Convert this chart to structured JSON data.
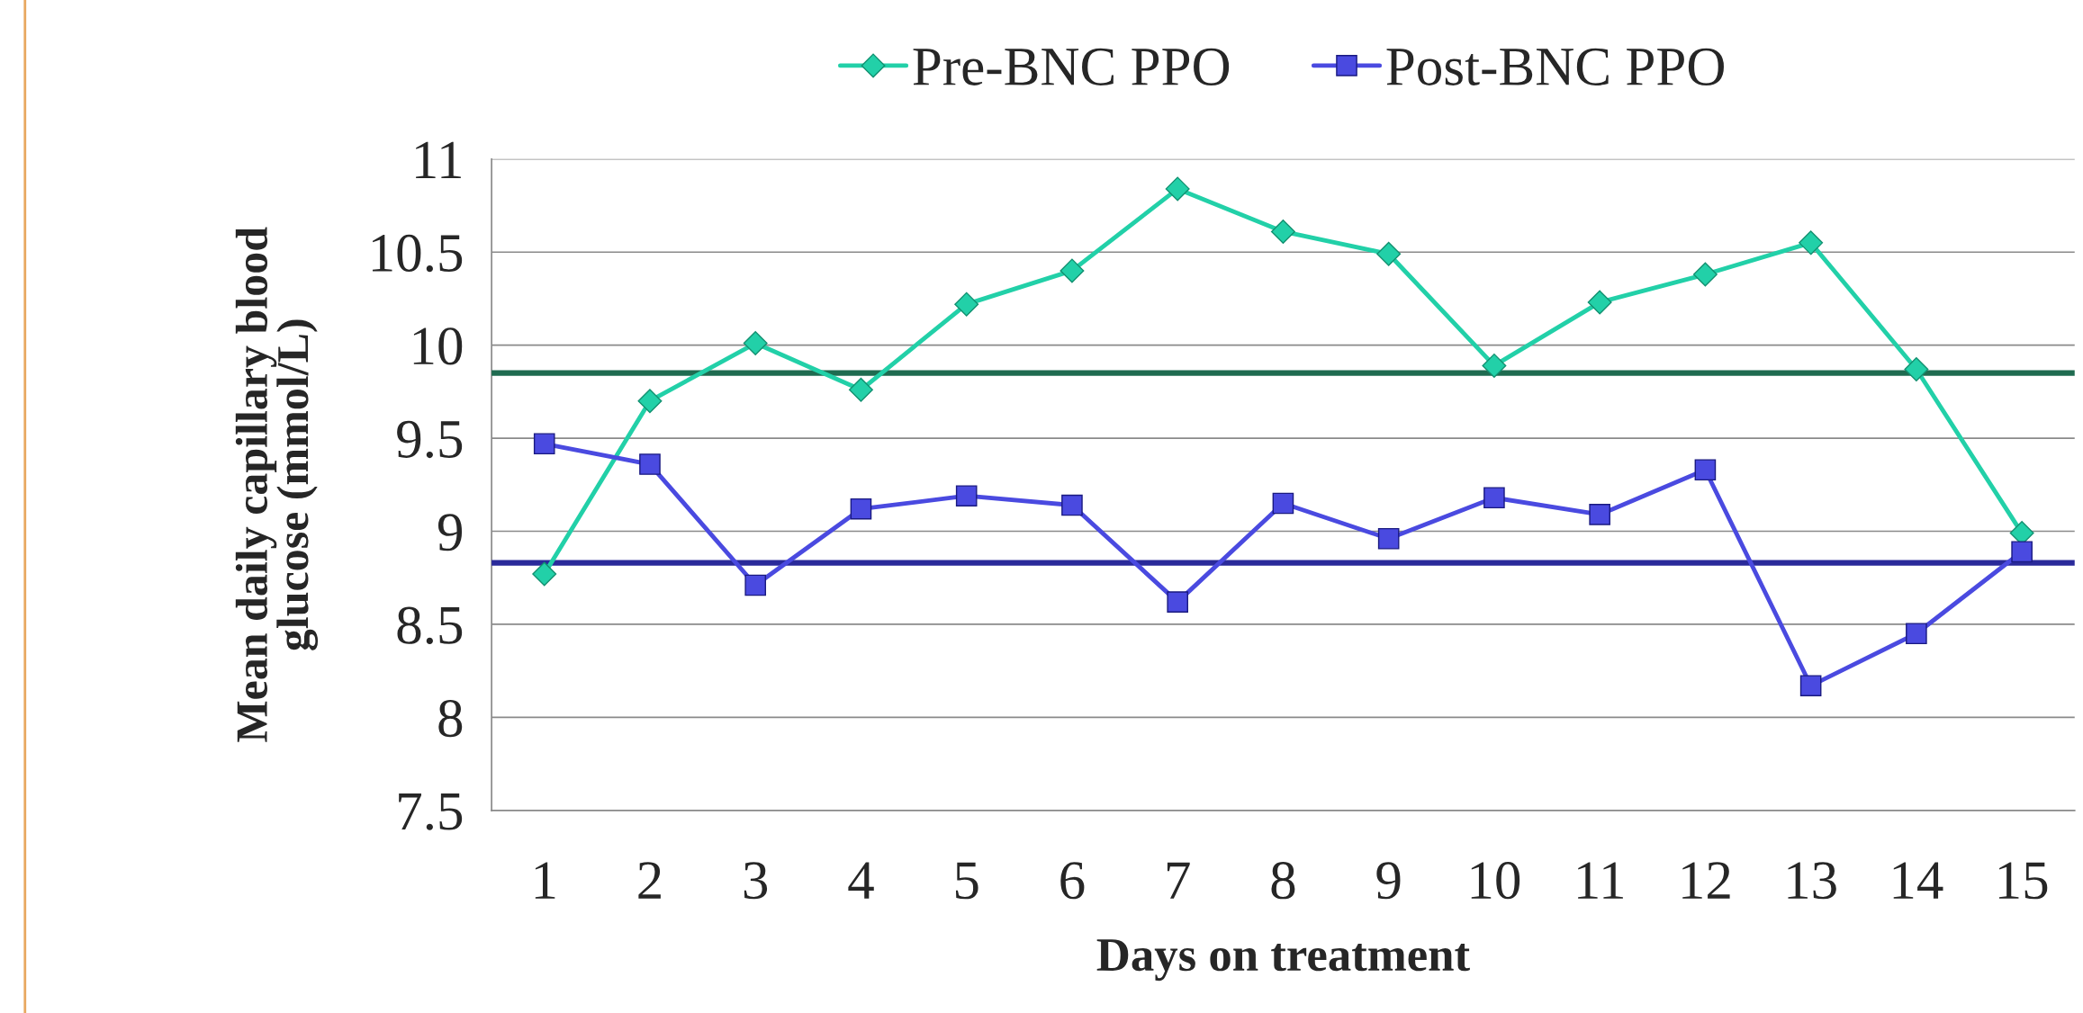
{
  "chart_data": {
    "type": "line",
    "xlabel": "Days on treatment",
    "ylabel": "Mean daily capillary blood\nglucose (mmol/L)",
    "categories": [
      "1",
      "2",
      "3",
      "4",
      "5",
      "6",
      "7",
      "8",
      "9",
      "10",
      "11",
      "12",
      "13",
      "14",
      "15"
    ],
    "series": [
      {
        "name": "Pre-BNC PPO",
        "color": "#22d0a8",
        "marker": "diamond",
        "values": [
          8.77,
          9.7,
          10.01,
          9.76,
          10.22,
          10.4,
          10.84,
          10.61,
          10.49,
          9.89,
          10.23,
          10.38,
          10.55,
          9.87,
          8.99
        ]
      },
      {
        "name": "Post-BNC PPO",
        "color": "#4a4ae0",
        "marker": "square",
        "values": [
          9.47,
          9.36,
          8.71,
          9.12,
          9.19,
          9.14,
          8.62,
          9.15,
          8.96,
          9.18,
          9.09,
          9.33,
          8.17,
          8.45,
          8.89
        ]
      }
    ],
    "ref_lines": [
      {
        "axis": "y",
        "value": 9.85,
        "color": "#1f6b50",
        "line_style": "solid"
      },
      {
        "axis": "y",
        "value": 8.83,
        "color": "#2a2a9a",
        "line_style": "solid"
      }
    ],
    "ylim": [
      7.5,
      11
    ],
    "yticks": [
      7.5,
      8,
      8.5,
      9,
      9.5,
      10,
      10.5,
      11
    ],
    "grid": "y",
    "legend": "top",
    "line_style": "solid"
  }
}
